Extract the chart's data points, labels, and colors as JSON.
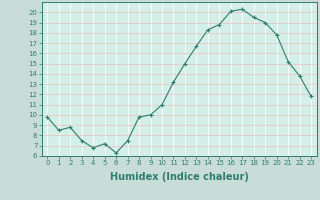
{
  "x": [
    0,
    1,
    2,
    3,
    4,
    5,
    6,
    7,
    8,
    9,
    10,
    11,
    12,
    13,
    14,
    15,
    16,
    17,
    18,
    19,
    20,
    21,
    22,
    23
  ],
  "y": [
    9.8,
    8.5,
    8.8,
    7.5,
    6.8,
    7.2,
    6.3,
    7.5,
    9.8,
    10.0,
    11.0,
    13.2,
    15.0,
    16.7,
    18.3,
    18.8,
    20.1,
    20.3,
    19.5,
    19.0,
    17.8,
    15.2,
    13.8,
    11.8
  ],
  "xlabel": "Humidex (Indice chaleur)",
  "ylabel": "",
  "xlim": [
    -0.5,
    23.5
  ],
  "ylim": [
    6,
    21
  ],
  "yticks": [
    6,
    7,
    8,
    9,
    10,
    11,
    12,
    13,
    14,
    15,
    16,
    17,
    18,
    19,
    20
  ],
  "xticks": [
    0,
    1,
    2,
    3,
    4,
    5,
    6,
    7,
    8,
    9,
    10,
    11,
    12,
    13,
    14,
    15,
    16,
    17,
    18,
    19,
    20,
    21,
    22,
    23
  ],
  "line_color": "#2e7d6e",
  "marker_color": "#2e7d6e",
  "bg_outer": "#c8ddd8",
  "bg_plot": "#d4eee8",
  "grid_color": "#ffffff",
  "grid_color2": "#e8c8c8",
  "tick_fontsize": 5.0,
  "xlabel_fontsize": 7.0
}
